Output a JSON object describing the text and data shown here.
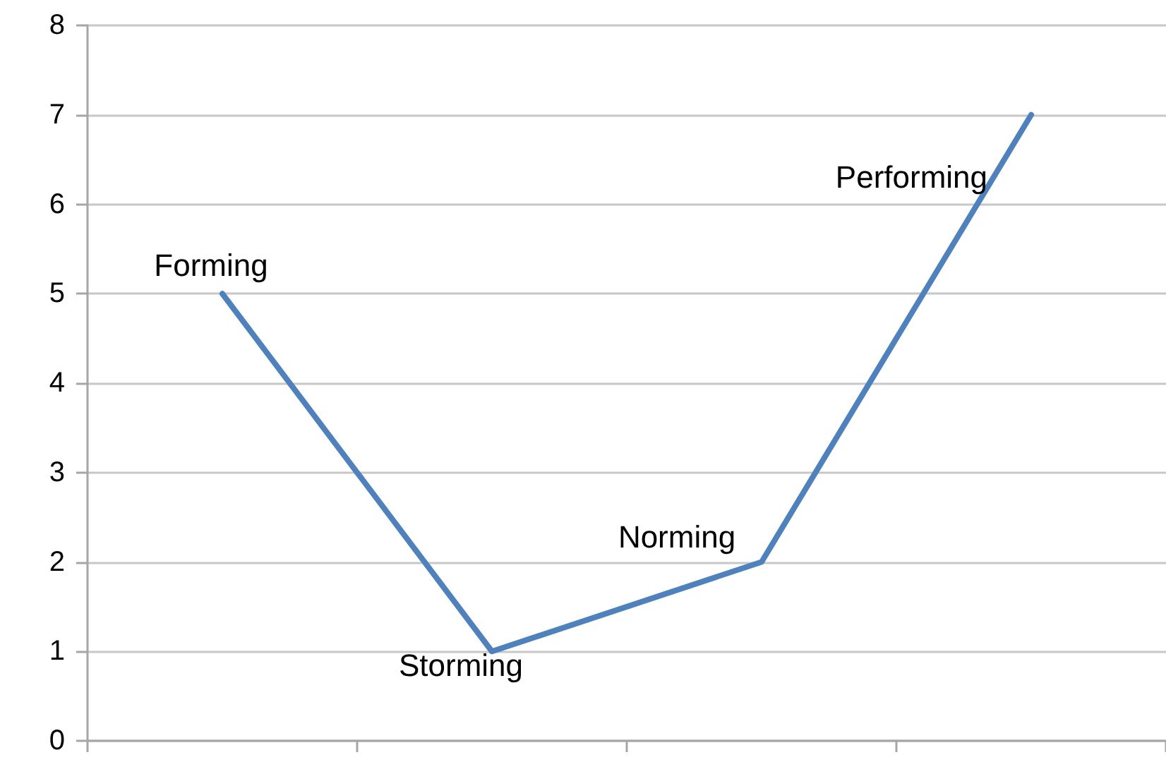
{
  "chart_data": {
    "type": "line",
    "categories": [
      "Forming",
      "Storming",
      "Norming",
      "Performing"
    ],
    "values": [
      5,
      1,
      2,
      7
    ],
    "color": "#4f81bd",
    "ylim": [
      0,
      8
    ],
    "yticks": [
      0,
      1,
      2,
      3,
      4,
      5,
      6,
      7,
      8
    ],
    "grid": "y",
    "tick_labels": "y",
    "marker": "none"
  }
}
